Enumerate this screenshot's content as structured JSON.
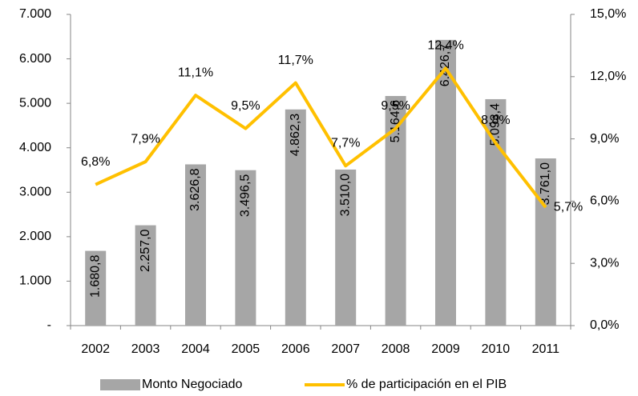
{
  "chart_data": {
    "type": "bar",
    "categories": [
      "2002",
      "2003",
      "2004",
      "2005",
      "2006",
      "2007",
      "2008",
      "2009",
      "2010",
      "2011"
    ],
    "series": [
      {
        "name": "Monto Negociado",
        "type": "bar",
        "color": "#a6a6a6",
        "values": [
          1680.8,
          2257.0,
          3626.8,
          3496.5,
          4862.3,
          3510.0,
          5164.6,
          6426.7,
          5093.4,
          3761.0
        ],
        "value_labels": [
          "1.680,8",
          "2.257,0",
          "3.626,8",
          "3.496,5",
          "4.862,3",
          "3.510,0",
          "5.164,6",
          "6.426,7",
          "5.093,4",
          "3.761,0"
        ]
      },
      {
        "name": "% de participación en el PIB",
        "type": "line",
        "color": "#ffc000",
        "axis": "y2",
        "values": [
          6.8,
          7.9,
          11.1,
          9.5,
          11.7,
          7.7,
          9.5,
          12.4,
          8.8,
          5.7
        ],
        "value_labels": [
          "6,8%",
          "7,9%",
          "11,1%",
          "9,5%",
          "11,7%",
          "7,7%",
          "9,5%",
          "12,4%",
          "8,8%",
          "5,7%"
        ]
      }
    ],
    "ylim": [
      0,
      7000
    ],
    "yticks": [
      {
        "value": 0,
        "label": "-"
      },
      {
        "value": 1000,
        "label": "1.000"
      },
      {
        "value": 2000,
        "label": "2.000"
      },
      {
        "value": 3000,
        "label": "3.000"
      },
      {
        "value": 4000,
        "label": "4.000"
      },
      {
        "value": 5000,
        "label": "5.000"
      },
      {
        "value": 6000,
        "label": "6.000"
      },
      {
        "value": 7000,
        "label": "7.000"
      }
    ],
    "y2lim": [
      0,
      15
    ],
    "y2ticks": [
      {
        "value": 0,
        "label": "0,0%"
      },
      {
        "value": 3,
        "label": "3,0%"
      },
      {
        "value": 6,
        "label": "6,0%"
      },
      {
        "value": 9,
        "label": "9,0%"
      },
      {
        "value": 12,
        "label": "12,0%"
      },
      {
        "value": 15,
        "label": "15,0%"
      }
    ],
    "grid": false,
    "legend": "bottom"
  }
}
